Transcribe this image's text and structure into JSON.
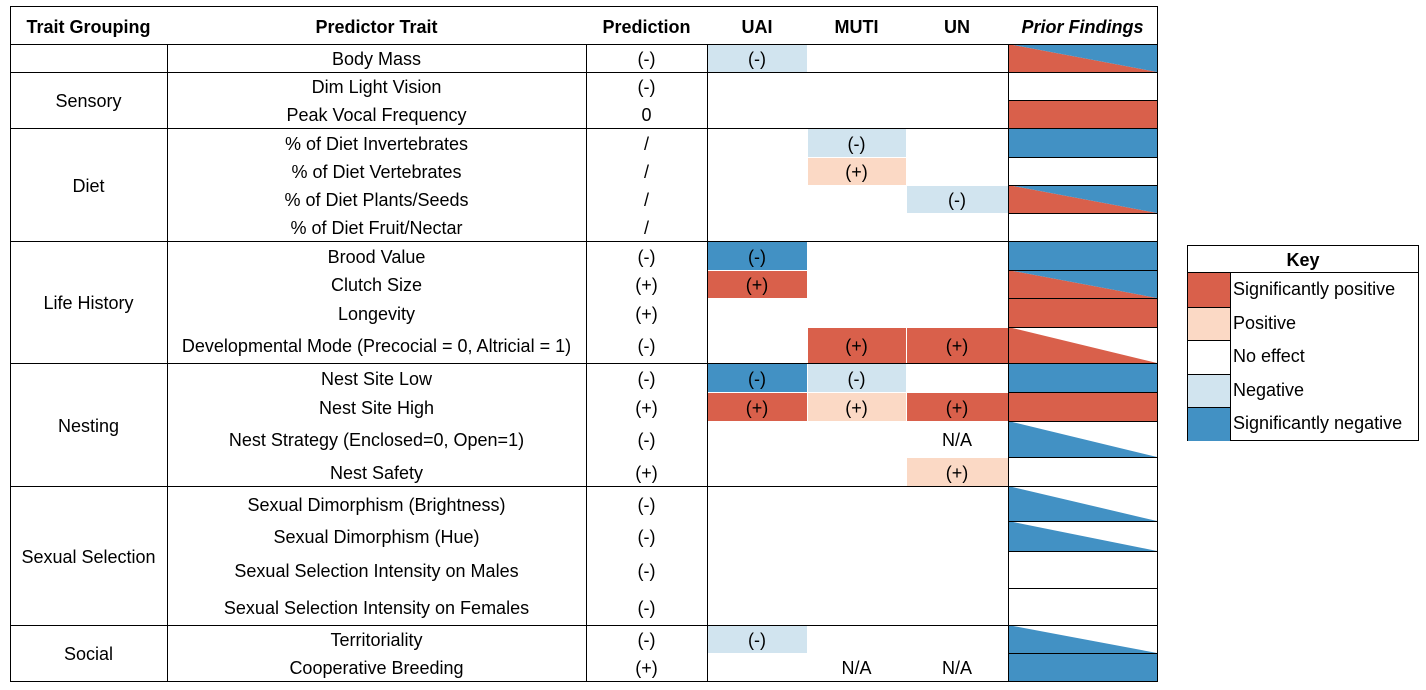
{
  "colors": {
    "sig_pos": "#d9604b",
    "pos": "#fbd9c5",
    "none": "#ffffff",
    "neg": "#d1e4ef",
    "sig_neg": "#4291c4"
  },
  "headers": [
    "Trait Grouping",
    "Predictor Trait",
    "Prediction",
    "UAI",
    "MUTI",
    "UN",
    "Prior Findings"
  ],
  "groups": [
    {
      "label": "",
      "rows": [
        0
      ]
    },
    {
      "label": "Sensory",
      "rows": [
        1,
        2
      ]
    },
    {
      "label": "Diet",
      "rows": [
        3,
        4,
        5,
        6
      ]
    },
    {
      "label": "Life History",
      "rows": [
        7,
        8,
        9,
        10
      ]
    },
    {
      "label": "Nesting",
      "rows": [
        11,
        12,
        13,
        14
      ]
    },
    {
      "label": "Sexual Selection",
      "rows": [
        15,
        16,
        17,
        18
      ]
    },
    {
      "label": "Social",
      "rows": [
        19,
        20
      ]
    }
  ],
  "rows": [
    {
      "trait": "Body Mass",
      "prediction": "(-)",
      "uai": {
        "text": "(-)",
        "color": "neg"
      },
      "muti": {
        "text": "",
        "color": "none"
      },
      "un": {
        "text": "",
        "color": "none"
      },
      "prior": "pos-neg"
    },
    {
      "trait": "Dim Light Vision",
      "prediction": "(-)",
      "uai": {
        "text": "",
        "color": "none"
      },
      "muti": {
        "text": "",
        "color": "none"
      },
      "un": {
        "text": "",
        "color": "none"
      },
      "prior": "none"
    },
    {
      "trait": "Peak Vocal Frequency",
      "prediction": "0",
      "uai": {
        "text": "",
        "color": "none"
      },
      "muti": {
        "text": "",
        "color": "none"
      },
      "un": {
        "text": "",
        "color": "none"
      },
      "prior": "sig_pos"
    },
    {
      "trait": "% of Diet Invertebrates",
      "prediction": "/",
      "uai": {
        "text": "",
        "color": "none"
      },
      "muti": {
        "text": "(-)",
        "color": "neg"
      },
      "un": {
        "text": "",
        "color": "none"
      },
      "prior": "sig_neg"
    },
    {
      "trait": "% of Diet Vertebrates",
      "prediction": "/",
      "uai": {
        "text": "",
        "color": "none"
      },
      "muti": {
        "text": "(+)",
        "color": "pos"
      },
      "un": {
        "text": "",
        "color": "none"
      },
      "prior": "none"
    },
    {
      "trait": "% of Diet Plants/Seeds",
      "prediction": "/",
      "uai": {
        "text": "",
        "color": "none"
      },
      "muti": {
        "text": "",
        "color": "none"
      },
      "un": {
        "text": "(-)",
        "color": "neg"
      },
      "prior": "pos-neg"
    },
    {
      "trait": "% of Diet Fruit/Nectar",
      "prediction": "/",
      "uai": {
        "text": "",
        "color": "none"
      },
      "muti": {
        "text": "",
        "color": "none"
      },
      "un": {
        "text": "",
        "color": "none"
      },
      "prior": "none"
    },
    {
      "trait": "Brood Value",
      "prediction": "(-)",
      "uai": {
        "text": "(-)",
        "color": "sig_neg"
      },
      "muti": {
        "text": "",
        "color": "none"
      },
      "un": {
        "text": "",
        "color": "none"
      },
      "prior": "sig_neg"
    },
    {
      "trait": "Clutch Size",
      "prediction": "(+)",
      "uai": {
        "text": "(+)",
        "color": "sig_pos"
      },
      "muti": {
        "text": "",
        "color": "none"
      },
      "un": {
        "text": "",
        "color": "none"
      },
      "prior": "pos-neg"
    },
    {
      "trait": "Longevity",
      "prediction": "(+)",
      "uai": {
        "text": "",
        "color": "none"
      },
      "muti": {
        "text": "",
        "color": "none"
      },
      "un": {
        "text": "",
        "color": "none"
      },
      "prior": "sig_pos"
    },
    {
      "trait": "Developmental Mode (Precocial = 0, Altricial = 1)",
      "prediction": "(-)",
      "uai": {
        "text": "",
        "color": "none"
      },
      "muti": {
        "text": "(+)",
        "color": "sig_pos"
      },
      "un": {
        "text": "(+)",
        "color": "sig_pos"
      },
      "prior": "pos-none"
    },
    {
      "trait": "Nest Site Low",
      "prediction": "(-)",
      "uai": {
        "text": "(-)",
        "color": "sig_neg"
      },
      "muti": {
        "text": "(-)",
        "color": "neg"
      },
      "un": {
        "text": "",
        "color": "none"
      },
      "prior": "sig_neg"
    },
    {
      "trait": "Nest Site High",
      "prediction": "(+)",
      "uai": {
        "text": "(+)",
        "color": "sig_pos"
      },
      "muti": {
        "text": "(+)",
        "color": "pos"
      },
      "un": {
        "text": "(+)",
        "color": "sig_pos"
      },
      "prior": "sig_pos"
    },
    {
      "trait": "Nest Strategy (Enclosed=0, Open=1)",
      "prediction": "(-)",
      "uai": {
        "text": "",
        "color": "none"
      },
      "muti": {
        "text": "",
        "color": "none"
      },
      "un": {
        "text": "N/A",
        "color": "none"
      },
      "prior": "neg-none"
    },
    {
      "trait": "Nest Safety",
      "prediction": "(+)",
      "uai": {
        "text": "",
        "color": "none"
      },
      "muti": {
        "text": "",
        "color": "none"
      },
      "un": {
        "text": "(+)",
        "color": "pos"
      },
      "prior": "none"
    },
    {
      "trait": "Sexual Dimorphism (Brightness)",
      "prediction": "(-)",
      "uai": {
        "text": "",
        "color": "none"
      },
      "muti": {
        "text": "",
        "color": "none"
      },
      "un": {
        "text": "",
        "color": "none"
      },
      "prior": "neg-none"
    },
    {
      "trait": "Sexual Dimorphism (Hue)",
      "prediction": "(-)",
      "uai": {
        "text": "",
        "color": "none"
      },
      "muti": {
        "text": "",
        "color": "none"
      },
      "un": {
        "text": "",
        "color": "none"
      },
      "prior": "neg-none"
    },
    {
      "trait": "Sexual Selection Intensity on Males",
      "prediction": "(-)",
      "uai": {
        "text": "",
        "color": "none"
      },
      "muti": {
        "text": "",
        "color": "none"
      },
      "un": {
        "text": "",
        "color": "none"
      },
      "prior": "none"
    },
    {
      "trait": "Sexual Selection Intensity on Females",
      "prediction": "(-)",
      "uai": {
        "text": "",
        "color": "none"
      },
      "muti": {
        "text": "",
        "color": "none"
      },
      "un": {
        "text": "",
        "color": "none"
      },
      "prior": "none"
    },
    {
      "trait": "Territoriality",
      "prediction": "(-)",
      "uai": {
        "text": "(-)",
        "color": "neg"
      },
      "muti": {
        "text": "",
        "color": "none"
      },
      "un": {
        "text": "",
        "color": "none"
      },
      "prior": "neg-none"
    },
    {
      "trait": "Cooperative Breeding",
      "prediction": "(+)",
      "uai": {
        "text": "",
        "color": "none"
      },
      "muti": {
        "text": "N/A",
        "color": "none"
      },
      "un": {
        "text": "N/A",
        "color": "none"
      },
      "prior": "sig_neg"
    }
  ],
  "key": {
    "title": "Key",
    "items": [
      {
        "label": "Significantly positive",
        "color": "sig_pos"
      },
      {
        "label": "Positive",
        "color": "pos"
      },
      {
        "label": "No effect",
        "color": "none"
      },
      {
        "label": "Negative",
        "color": "neg"
      },
      {
        "label": "Significantly negative",
        "color": "sig_neg"
      }
    ]
  }
}
